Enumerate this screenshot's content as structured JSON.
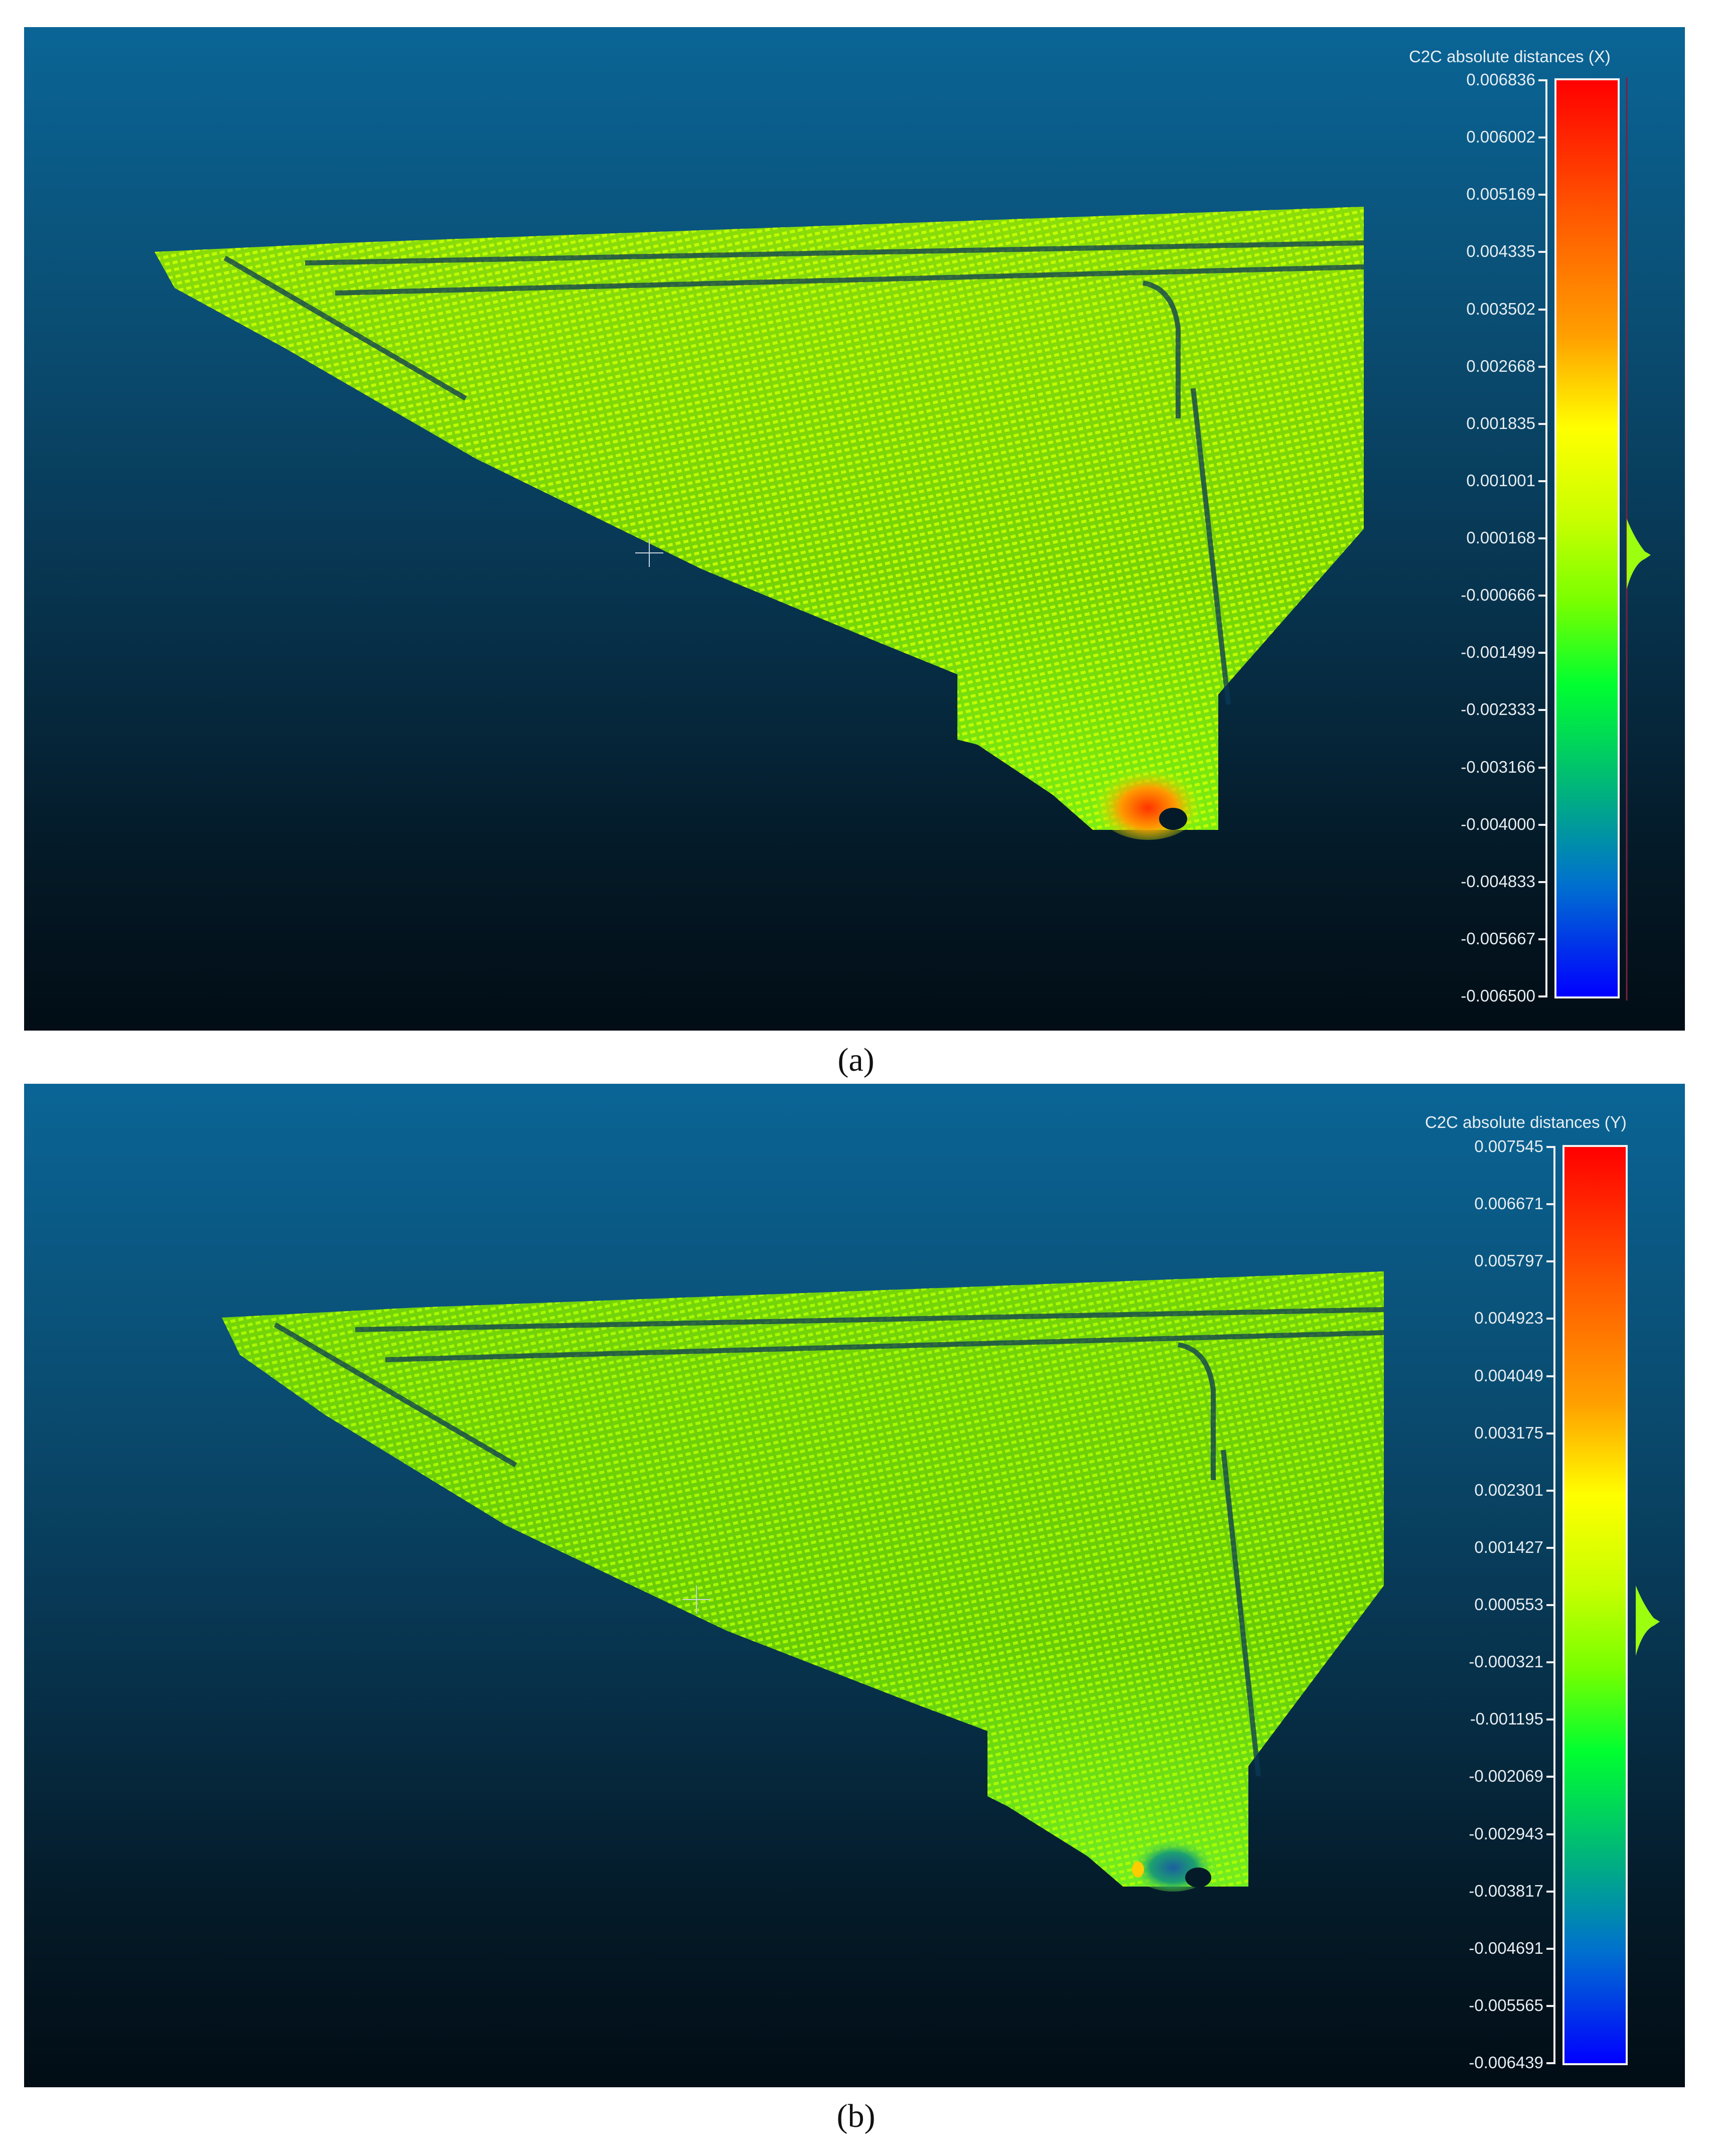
{
  "panels": [
    {
      "scale_title": "C2C absolute distances (X)",
      "ticks": [
        "0.006836",
        "0.006002",
        "0.005169",
        "0.004335",
        "0.003502",
        "0.002668",
        "0.001835",
        "0.001001",
        "0.000168",
        "-0.000666",
        "-0.001499",
        "-0.002333",
        "-0.003166",
        "-0.004000",
        "-0.004833",
        "-0.005667",
        "-0.006500"
      ],
      "caption": "(a)",
      "hot_spot_color": "#ff3300"
    },
    {
      "scale_title": "C2C absolute distances (Y)",
      "ticks": [
        "0.007545",
        "0.006671",
        "0.005797",
        "0.004923",
        "0.004049",
        "0.003175",
        "0.002301",
        "0.001427",
        "0.000553",
        "-0.000321",
        "-0.001195",
        "-0.002069",
        "-0.002943",
        "-0.003817",
        "-0.004691",
        "-0.005565",
        "-0.006439"
      ],
      "caption": "(b)",
      "hot_spot_color": "#1c5fa0"
    }
  ],
  "colors": {
    "background_top": "#0a6596",
    "background_bottom": "#020d15",
    "cloud_main": "#8cf000",
    "cloud_bright": "#c8ff00",
    "scale_max": "#ff0000",
    "scale_mid": "#ffff00",
    "scale_min": "#0000ff"
  }
}
